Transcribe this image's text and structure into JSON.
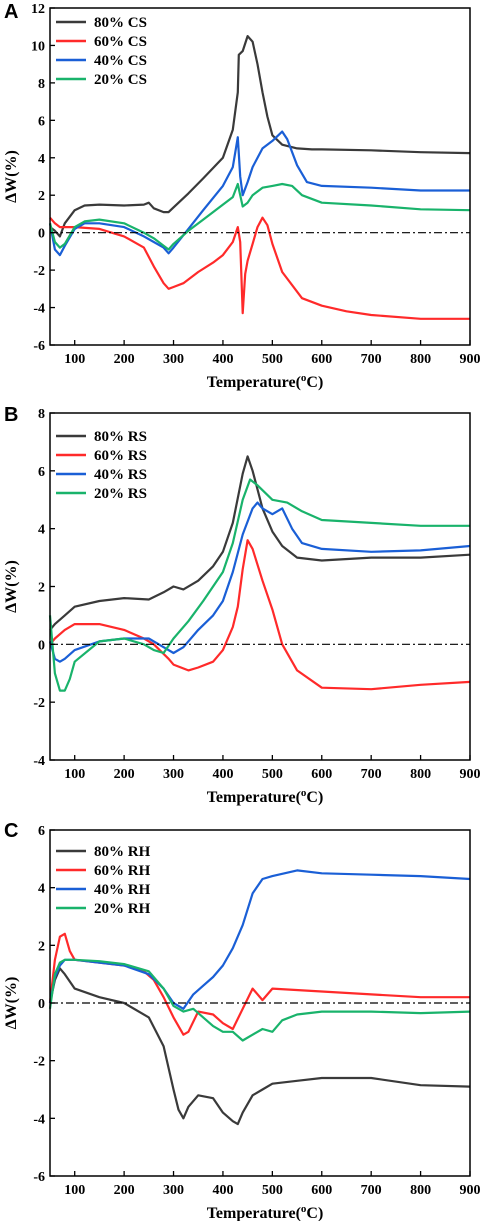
{
  "chart_data": [
    {
      "type": "line",
      "panel_label": "A",
      "xlabel_base": "Temperature(",
      "xlabel_sup": "o",
      "xlabel_end": "C)",
      "ylabel": "ΔW(%)",
      "xlim": [
        50,
        900
      ],
      "ylim": [
        -6,
        12
      ],
      "xticks": [
        100,
        200,
        300,
        400,
        500,
        600,
        700,
        800,
        900
      ],
      "yticks": [
        -6,
        -4,
        -2,
        0,
        2,
        4,
        6,
        8,
        10,
        12
      ],
      "reference_line": 0,
      "legend_position": "top-left",
      "series": [
        {
          "name": "80% CS",
          "color": "#3a3a3a",
          "x": [
            50,
            60,
            70,
            80,
            100,
            120,
            150,
            200,
            240,
            250,
            260,
            280,
            290,
            300,
            330,
            360,
            400,
            420,
            430,
            432,
            440,
            450,
            460,
            470,
            480,
            490,
            500,
            520,
            550,
            580,
            600,
            700,
            800,
            900
          ],
          "y": [
            0.3,
            0.1,
            -0.2,
            0.5,
            1.2,
            1.45,
            1.5,
            1.45,
            1.5,
            1.6,
            1.3,
            1.1,
            1.1,
            1.35,
            2.1,
            2.9,
            4.0,
            5.5,
            7.5,
            9.5,
            9.7,
            10.5,
            10.2,
            9.0,
            7.5,
            6.2,
            5.2,
            4.7,
            4.5,
            4.45,
            4.45,
            4.4,
            4.3,
            4.25
          ]
        },
        {
          "name": "60% CS",
          "color": "#ff2a2a",
          "x": [
            50,
            60,
            70,
            80,
            100,
            150,
            200,
            240,
            260,
            280,
            290,
            300,
            320,
            350,
            380,
            400,
            420,
            430,
            435,
            440,
            445,
            450,
            460,
            470,
            480,
            490,
            500,
            520,
            560,
            600,
            650,
            700,
            800,
            900
          ],
          "y": [
            0.8,
            0.5,
            0.3,
            0.3,
            0.3,
            0.2,
            -0.2,
            -0.8,
            -1.8,
            -2.7,
            -3.0,
            -2.9,
            -2.7,
            -2.1,
            -1.6,
            -1.2,
            -0.5,
            0.3,
            -0.5,
            -4.3,
            -2.2,
            -1.5,
            -0.6,
            0.3,
            0.8,
            0.4,
            -0.6,
            -2.1,
            -3.5,
            -3.9,
            -4.2,
            -4.4,
            -4.6,
            -4.6
          ]
        },
        {
          "name": "40% CS",
          "color": "#1a5fd6",
          "x": [
            50,
            60,
            70,
            80,
            100,
            120,
            150,
            200,
            240,
            260,
            280,
            290,
            300,
            330,
            360,
            400,
            420,
            430,
            435,
            440,
            450,
            460,
            480,
            500,
            520,
            530,
            550,
            570,
            600,
            700,
            800,
            900
          ],
          "y": [
            0.5,
            -0.9,
            -1.2,
            -0.7,
            0.2,
            0.5,
            0.5,
            0.3,
            -0.2,
            -0.5,
            -0.8,
            -1.1,
            -0.8,
            0.2,
            1.2,
            2.5,
            3.5,
            5.1,
            3.0,
            2.0,
            2.7,
            3.5,
            4.5,
            4.9,
            5.4,
            5.0,
            3.6,
            2.7,
            2.5,
            2.4,
            2.25,
            2.25
          ]
        },
        {
          "name": "20% CS",
          "color": "#19b36b",
          "x": [
            50,
            60,
            70,
            80,
            100,
            120,
            150,
            200,
            240,
            260,
            280,
            290,
            300,
            330,
            360,
            400,
            420,
            430,
            435,
            440,
            450,
            460,
            480,
            500,
            520,
            540,
            560,
            600,
            700,
            800,
            900
          ],
          "y": [
            0.5,
            -0.5,
            -0.8,
            -0.6,
            0.3,
            0.6,
            0.7,
            0.5,
            0.0,
            -0.3,
            -0.7,
            -0.9,
            -0.6,
            0.1,
            0.7,
            1.5,
            1.9,
            2.6,
            2.0,
            1.4,
            1.6,
            2.0,
            2.4,
            2.5,
            2.6,
            2.5,
            2.0,
            1.6,
            1.45,
            1.25,
            1.2
          ]
        }
      ]
    },
    {
      "type": "line",
      "panel_label": "B",
      "xlabel_base": "Temperature(",
      "xlabel_sup": "o",
      "xlabel_end": "C)",
      "ylabel": "ΔW(%)",
      "xlim": [
        50,
        900
      ],
      "ylim": [
        -4,
        8
      ],
      "xticks": [
        100,
        200,
        300,
        400,
        500,
        600,
        700,
        800,
        900
      ],
      "yticks": [
        -4,
        -2,
        0,
        2,
        4,
        6,
        8
      ],
      "reference_line": 0,
      "legend_position": "top-left",
      "series": [
        {
          "name": "80% RS",
          "color": "#3a3a3a",
          "x": [
            50,
            60,
            80,
            100,
            150,
            200,
            250,
            280,
            300,
            320,
            350,
            380,
            400,
            420,
            440,
            450,
            460,
            480,
            500,
            520,
            550,
            600,
            700,
            800,
            900
          ],
          "y": [
            0.5,
            0.7,
            1.0,
            1.3,
            1.5,
            1.6,
            1.55,
            1.8,
            2.0,
            1.9,
            2.2,
            2.7,
            3.2,
            4.2,
            5.9,
            6.5,
            6.0,
            4.7,
            3.9,
            3.4,
            3.0,
            2.9,
            3.0,
            3.0,
            3.1
          ]
        },
        {
          "name": "60% RS",
          "color": "#ff2a2a",
          "x": [
            50,
            60,
            80,
            100,
            150,
            200,
            240,
            260,
            290,
            300,
            330,
            350,
            380,
            400,
            420,
            430,
            440,
            450,
            460,
            480,
            500,
            520,
            550,
            600,
            700,
            800,
            900
          ],
          "y": [
            0.0,
            0.2,
            0.5,
            0.7,
            0.7,
            0.5,
            0.2,
            0.0,
            -0.5,
            -0.7,
            -0.9,
            -0.8,
            -0.6,
            -0.2,
            0.6,
            1.3,
            2.6,
            3.6,
            3.3,
            2.2,
            1.2,
            0.0,
            -0.9,
            -1.5,
            -1.55,
            -1.4,
            -1.3
          ]
        },
        {
          "name": "40% RS",
          "color": "#1a5fd6",
          "x": [
            50,
            60,
            70,
            80,
            100,
            150,
            200,
            250,
            280,
            300,
            320,
            350,
            380,
            400,
            420,
            440,
            460,
            470,
            480,
            500,
            520,
            540,
            560,
            600,
            700,
            800,
            900
          ],
          "y": [
            0.1,
            -0.5,
            -0.6,
            -0.5,
            -0.2,
            0.1,
            0.2,
            0.2,
            -0.1,
            -0.3,
            -0.1,
            0.5,
            1.0,
            1.5,
            2.5,
            3.8,
            4.7,
            4.9,
            4.7,
            4.5,
            4.7,
            4.0,
            3.5,
            3.3,
            3.2,
            3.25,
            3.4
          ]
        },
        {
          "name": "20% RS",
          "color": "#19b36b",
          "x": [
            50,
            60,
            70,
            80,
            90,
            100,
            150,
            200,
            240,
            260,
            280,
            300,
            330,
            360,
            400,
            420,
            440,
            455,
            470,
            500,
            530,
            560,
            600,
            700,
            800,
            900
          ],
          "y": [
            1.0,
            -1.0,
            -1.6,
            -1.6,
            -1.2,
            -0.6,
            0.1,
            0.2,
            0.0,
            -0.2,
            -0.3,
            0.2,
            0.8,
            1.5,
            2.5,
            3.5,
            5.0,
            5.7,
            5.5,
            5.0,
            4.9,
            4.6,
            4.3,
            4.2,
            4.1,
            4.1
          ]
        }
      ]
    },
    {
      "type": "line",
      "panel_label": "C",
      "xlabel_base": "Temperature(",
      "xlabel_sup": "o",
      "xlabel_end": "C)",
      "ylabel": "ΔW(%)",
      "xlim": [
        50,
        900
      ],
      "ylim": [
        -6,
        6
      ],
      "xticks": [
        100,
        200,
        300,
        400,
        500,
        600,
        700,
        800,
        900
      ],
      "yticks": [
        -6,
        -4,
        -2,
        0,
        2,
        4,
        6
      ],
      "reference_line": 0,
      "legend_position": "top-left",
      "series": [
        {
          "name": "80% RH",
          "color": "#3a3a3a",
          "x": [
            50,
            60,
            70,
            80,
            100,
            150,
            200,
            250,
            280,
            300,
            310,
            320,
            330,
            350,
            380,
            400,
            420,
            430,
            440,
            460,
            480,
            500,
            550,
            600,
            700,
            800,
            900
          ],
          "y": [
            0.0,
            0.8,
            1.2,
            1.0,
            0.5,
            0.2,
            0.0,
            -0.5,
            -1.5,
            -3.0,
            -3.7,
            -4.0,
            -3.6,
            -3.2,
            -3.3,
            -3.8,
            -4.1,
            -4.2,
            -3.8,
            -3.2,
            -3.0,
            -2.8,
            -2.7,
            -2.6,
            -2.6,
            -2.85,
            -2.9
          ]
        },
        {
          "name": "60% RH",
          "color": "#ff2a2a",
          "x": [
            50,
            60,
            70,
            80,
            90,
            100,
            150,
            200,
            240,
            260,
            280,
            300,
            320,
            330,
            350,
            380,
            400,
            420,
            440,
            460,
            480,
            500,
            600,
            700,
            800,
            900
          ],
          "y": [
            0.0,
            1.5,
            2.3,
            2.4,
            1.8,
            1.5,
            1.4,
            1.3,
            1.1,
            0.8,
            0.2,
            -0.5,
            -1.1,
            -1.0,
            -0.3,
            -0.4,
            -0.7,
            -0.9,
            -0.2,
            0.5,
            0.1,
            0.5,
            0.4,
            0.3,
            0.2,
            0.2
          ]
        },
        {
          "name": "40% RH",
          "color": "#1a5fd6",
          "x": [
            50,
            60,
            70,
            80,
            100,
            150,
            200,
            250,
            280,
            300,
            320,
            340,
            360,
            380,
            400,
            420,
            440,
            460,
            480,
            500,
            550,
            600,
            700,
            800,
            900
          ],
          "y": [
            0.0,
            0.9,
            1.3,
            1.5,
            1.5,
            1.4,
            1.3,
            1.0,
            0.5,
            0.0,
            -0.2,
            0.3,
            0.6,
            0.9,
            1.3,
            1.9,
            2.7,
            3.8,
            4.3,
            4.4,
            4.6,
            4.5,
            4.45,
            4.4,
            4.3
          ]
        },
        {
          "name": "20% RH",
          "color": "#19b36b",
          "x": [
            50,
            60,
            70,
            80,
            100,
            150,
            200,
            250,
            280,
            300,
            320,
            340,
            360,
            380,
            400,
            420,
            440,
            460,
            480,
            500,
            520,
            550,
            600,
            700,
            800,
            900
          ],
          "y": [
            -0.2,
            1.0,
            1.4,
            1.5,
            1.5,
            1.45,
            1.35,
            1.1,
            0.5,
            -0.1,
            -0.3,
            -0.2,
            -0.5,
            -0.8,
            -1.0,
            -1.0,
            -1.3,
            -1.1,
            -0.9,
            -1.0,
            -0.6,
            -0.4,
            -0.3,
            -0.3,
            -0.35,
            -0.3
          ]
        }
      ]
    }
  ]
}
